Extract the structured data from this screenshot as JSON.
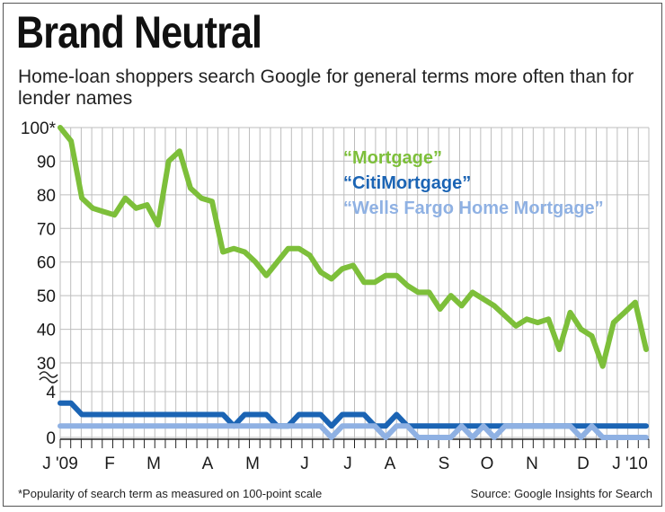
{
  "title": "Brand Neutral",
  "subtitle": "Home-loan shoppers search Google for general terms more often than for lender names",
  "footnote": "*Popularity of search term as measured on 100-point scale",
  "source": "Source: Google Insights for Search",
  "chart_data": {
    "type": "line",
    "title": "Brand Neutral",
    "subtitle": "Home-loan shoppers search Google for general terms more often than for lender names",
    "xlabel": "",
    "ylabel": "",
    "x_ticks": [
      "J '09",
      "F",
      "M",
      "A",
      "M",
      "J",
      "J",
      "A",
      "S",
      "O",
      "N",
      "D",
      "J '10"
    ],
    "upper_axis": {
      "ylim": [
        30,
        100
      ],
      "ticks": [
        "100*",
        "90",
        "80",
        "70",
        "60",
        "50",
        "40",
        "30"
      ]
    },
    "lower_axis": {
      "ylim": [
        0,
        4
      ],
      "ticks": [
        "4",
        "0"
      ]
    },
    "axis_break": true,
    "grid": true,
    "legend_position": "top-right",
    "series": [
      {
        "name": "“Mortgage”",
        "color": "#7dbf3a",
        "axis": "upper",
        "values": [
          100,
          96,
          79,
          76,
          75,
          74,
          79,
          76,
          77,
          71,
          90,
          93,
          82,
          79,
          78,
          63,
          64,
          63,
          60,
          56,
          60,
          64,
          64,
          62,
          57,
          55,
          58,
          59,
          54,
          54,
          56,
          56,
          53,
          51,
          51,
          46,
          50,
          47,
          51,
          49,
          47,
          44,
          41,
          43,
          42,
          43,
          34,
          45,
          40,
          38,
          29,
          42,
          45,
          48,
          34
        ]
      },
      {
        "name": "“CitiMortgage”",
        "color": "#1b64b4",
        "axis": "lower",
        "values": [
          3,
          3,
          2,
          2,
          2,
          2,
          2,
          2,
          2,
          2,
          2,
          2,
          2,
          2,
          2,
          2,
          1,
          2,
          2,
          2,
          1,
          1,
          2,
          2,
          2,
          1,
          2,
          2,
          2,
          1,
          1,
          2,
          1,
          1,
          1,
          1,
          1,
          1,
          1,
          1,
          1,
          1,
          1,
          1,
          1,
          1,
          1,
          1,
          1,
          1,
          1,
          1,
          1,
          1,
          1
        ]
      },
      {
        "name": "“Wells Fargo Home Mortgage”",
        "color": "#8fb1e3",
        "axis": "lower",
        "values": [
          1,
          1,
          1,
          1,
          1,
          1,
          1,
          1,
          1,
          1,
          1,
          1,
          1,
          1,
          1,
          1,
          1,
          1,
          1,
          1,
          1,
          1,
          1,
          1,
          1,
          0,
          1,
          1,
          1,
          1,
          0,
          1,
          1,
          0,
          0,
          0,
          0,
          1,
          0,
          1,
          0,
          1,
          1,
          1,
          1,
          1,
          1,
          1,
          0,
          1,
          0,
          0,
          0,
          0,
          0
        ]
      }
    ]
  }
}
